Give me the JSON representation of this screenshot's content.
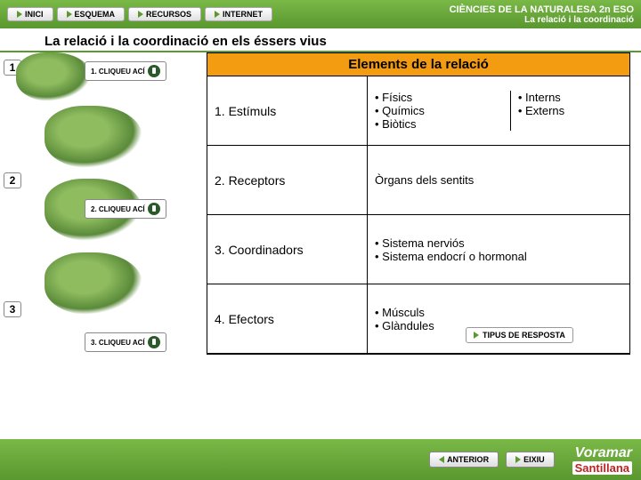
{
  "nav": {
    "inici": "INICI",
    "esquema": "ESQUEMA",
    "recursos": "RECURSOS",
    "internet": "INTERNET"
  },
  "header": {
    "line1": "CIÈNCIES DE LA NATURALESA 2n ESO",
    "line2": "La relació i la coordinació"
  },
  "section_title": "La relació i la coordinació en els éssers vius",
  "badges": {
    "n1": "1",
    "n2": "2",
    "n3": "3"
  },
  "click": {
    "c1": "1. CLIQUEU ACÍ",
    "c2": "2. CLIQUEU ACÍ",
    "c3": "3. CLIQUEU ACÍ"
  },
  "table": {
    "title": "Elements de la relació",
    "rows": [
      {
        "left": "1. Estímuls",
        "right_split": {
          "l": "• Físics\n• Químics\n• Biòtics",
          "r": "• Interns\n• Externs"
        }
      },
      {
        "left": "2. Receptors",
        "right": "Òrgans dels sentits"
      },
      {
        "left": "3. Coordinadors",
        "right": "• Sistema nerviós\n• Sistema endocrí o hormonal"
      },
      {
        "left": "4. Efectors",
        "right": "• Músculs\n• Glàndules"
      }
    ]
  },
  "tipus": "TIPUS DE RESPOSTA",
  "bottom": {
    "anterior": "ANTERIOR",
    "eixiu": "EIXIU",
    "brand1": "Voramar",
    "brand2": "Santillana"
  },
  "colors": {
    "green": "#5a9830",
    "orange": "#f39c12"
  }
}
